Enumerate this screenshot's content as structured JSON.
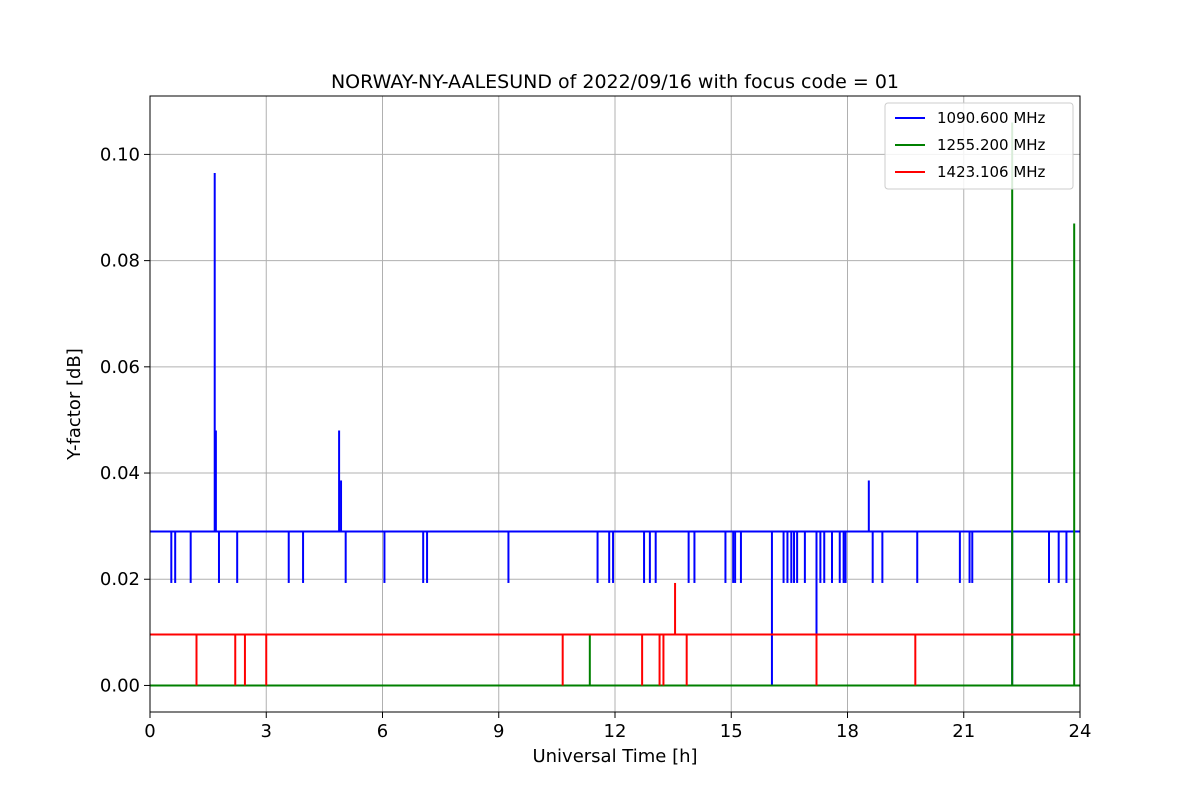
{
  "chart_data": {
    "type": "line",
    "title": "NORWAY-NY-AALESUND of 2022/09/16 with focus code = 01",
    "xlabel": "Universal Time [h]",
    "ylabel": "Y-factor [dB]",
    "xlim": [
      0,
      24
    ],
    "ylim": [
      -0.005,
      0.111
    ],
    "xticks": [
      0,
      3,
      6,
      9,
      12,
      15,
      18,
      21,
      24
    ],
    "xtick_labels": [
      "0",
      "3",
      "6",
      "9",
      "12",
      "15",
      "18",
      "21",
      "24"
    ],
    "yticks": [
      0.0,
      0.02,
      0.04,
      0.06,
      0.08,
      0.1
    ],
    "ytick_labels": [
      "0.00",
      "0.02",
      "0.04",
      "0.06",
      "0.08",
      "0.10"
    ],
    "grid": true,
    "legend_position": "top-right",
    "series": [
      {
        "name": "1090.600 MHz",
        "color": "#0000ff",
        "baseline": 0.029,
        "spikes": [
          {
            "x": 0.55,
            "y": 0.0193
          },
          {
            "x": 0.65,
            "y": 0.0193
          },
          {
            "x": 1.05,
            "y": 0.0193
          },
          {
            "x": 1.67,
            "y": 0.0965
          },
          {
            "x": 1.7,
            "y": 0.048
          },
          {
            "x": 1.78,
            "y": 0.0193
          },
          {
            "x": 2.25,
            "y": 0.0193
          },
          {
            "x": 3.58,
            "y": 0.0193
          },
          {
            "x": 3.95,
            "y": 0.0193
          },
          {
            "x": 4.88,
            "y": 0.048
          },
          {
            "x": 4.93,
            "y": 0.0386
          },
          {
            "x": 5.05,
            "y": 0.0193
          },
          {
            "x": 6.05,
            "y": 0.0193
          },
          {
            "x": 7.05,
            "y": 0.0193
          },
          {
            "x": 7.15,
            "y": 0.0193
          },
          {
            "x": 9.25,
            "y": 0.0193
          },
          {
            "x": 11.55,
            "y": 0.0193
          },
          {
            "x": 11.85,
            "y": 0.0193
          },
          {
            "x": 11.95,
            "y": 0.0193
          },
          {
            "x": 12.75,
            "y": 0.0193
          },
          {
            "x": 12.9,
            "y": 0.0193
          },
          {
            "x": 13.05,
            "y": 0.0193
          },
          {
            "x": 13.9,
            "y": 0.0193
          },
          {
            "x": 14.05,
            "y": 0.0193
          },
          {
            "x": 14.85,
            "y": 0.0193
          },
          {
            "x": 15.05,
            "y": 0.0193
          },
          {
            "x": 15.1,
            "y": 0.0193
          },
          {
            "x": 15.25,
            "y": 0.0193
          },
          {
            "x": 16.05,
            "y": 0.0
          },
          {
            "x": 16.35,
            "y": 0.0193
          },
          {
            "x": 16.45,
            "y": 0.0193
          },
          {
            "x": 16.55,
            "y": 0.0193
          },
          {
            "x": 16.62,
            "y": 0.0193
          },
          {
            "x": 16.7,
            "y": 0.0193
          },
          {
            "x": 16.9,
            "y": 0.0193
          },
          {
            "x": 17.2,
            "y": 0.0096
          },
          {
            "x": 17.3,
            "y": 0.0193
          },
          {
            "x": 17.4,
            "y": 0.0193
          },
          {
            "x": 17.6,
            "y": 0.0193
          },
          {
            "x": 17.8,
            "y": 0.0193
          },
          {
            "x": 17.9,
            "y": 0.0193
          },
          {
            "x": 17.95,
            "y": 0.0193
          },
          {
            "x": 18.55,
            "y": 0.0386
          },
          {
            "x": 18.65,
            "y": 0.0193
          },
          {
            "x": 18.9,
            "y": 0.0193
          },
          {
            "x": 19.8,
            "y": 0.0193
          },
          {
            "x": 20.9,
            "y": 0.0193
          },
          {
            "x": 21.15,
            "y": 0.0193
          },
          {
            "x": 21.22,
            "y": 0.0193
          },
          {
            "x": 22.25,
            "y": 0.0
          },
          {
            "x": 23.2,
            "y": 0.0193
          },
          {
            "x": 23.45,
            "y": 0.0193
          },
          {
            "x": 23.65,
            "y": 0.0193
          }
        ]
      },
      {
        "name": "1255.200 MHz",
        "color": "#008000",
        "baseline": 0.0,
        "spikes": [
          {
            "x": 11.35,
            "y": 0.0096
          },
          {
            "x": 22.25,
            "y": 0.106
          },
          {
            "x": 23.85,
            "y": 0.087
          }
        ]
      },
      {
        "name": "1423.106 MHz",
        "color": "#ff0000",
        "baseline": 0.0096,
        "spikes": [
          {
            "x": 1.2,
            "y": 0.0
          },
          {
            "x": 2.2,
            "y": 0.0
          },
          {
            "x": 2.45,
            "y": 0.0
          },
          {
            "x": 3.0,
            "y": 0.0
          },
          {
            "x": 10.65,
            "y": 0.0
          },
          {
            "x": 12.7,
            "y": 0.0
          },
          {
            "x": 13.15,
            "y": 0.0
          },
          {
            "x": 13.25,
            "y": 0.0
          },
          {
            "x": 13.55,
            "y": 0.0193
          },
          {
            "x": 13.85,
            "y": 0.0
          },
          {
            "x": 17.2,
            "y": 0.0
          },
          {
            "x": 19.75,
            "y": 0.0
          }
        ]
      }
    ]
  }
}
